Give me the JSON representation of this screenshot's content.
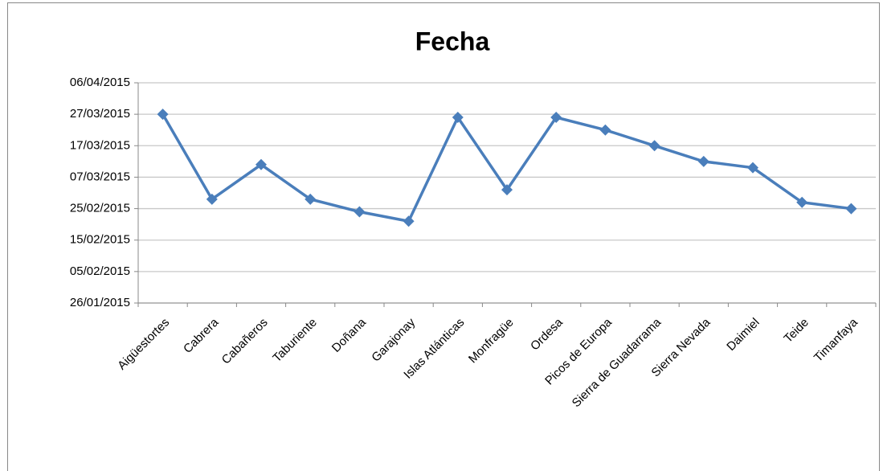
{
  "chart_data": {
    "type": "line",
    "title": "Fecha",
    "categories": [
      "Aigüestortes",
      "Cabrera",
      "Cabañeros",
      "Taburiente",
      "Doñana",
      "Garajonay",
      "Islas Atlánticas",
      "Monfragüe",
      "Ordesa",
      "Picos de Europa",
      "Sierra de Guadarrama",
      "Sierra Nevada",
      "Daimiel",
      "Teide",
      "Timanfaya"
    ],
    "series": [
      {
        "name": "Fecha",
        "color": "#4a7ebb",
        "values": [
          42090,
          42063,
          42074,
          42063,
          42059,
          42056,
          42089,
          42066,
          42089,
          42085,
          42080,
          42075,
          42073,
          42062,
          42060
        ]
      }
    ],
    "ylim": [
      42030,
      42100
    ],
    "yticks": [
      {
        "value": 42030,
        "label": "26/01/2015"
      },
      {
        "value": 42040,
        "label": "05/02/2015"
      },
      {
        "value": 42050,
        "label": "15/02/2015"
      },
      {
        "value": 42060,
        "label": "25/02/2015"
      },
      {
        "value": 42070,
        "label": "07/03/2015"
      },
      {
        "value": 42080,
        "label": "17/03/2015"
      },
      {
        "value": 42090,
        "label": "27/03/2015"
      },
      {
        "value": 42100,
        "label": "06/04/2015"
      }
    ],
    "grid": true
  }
}
